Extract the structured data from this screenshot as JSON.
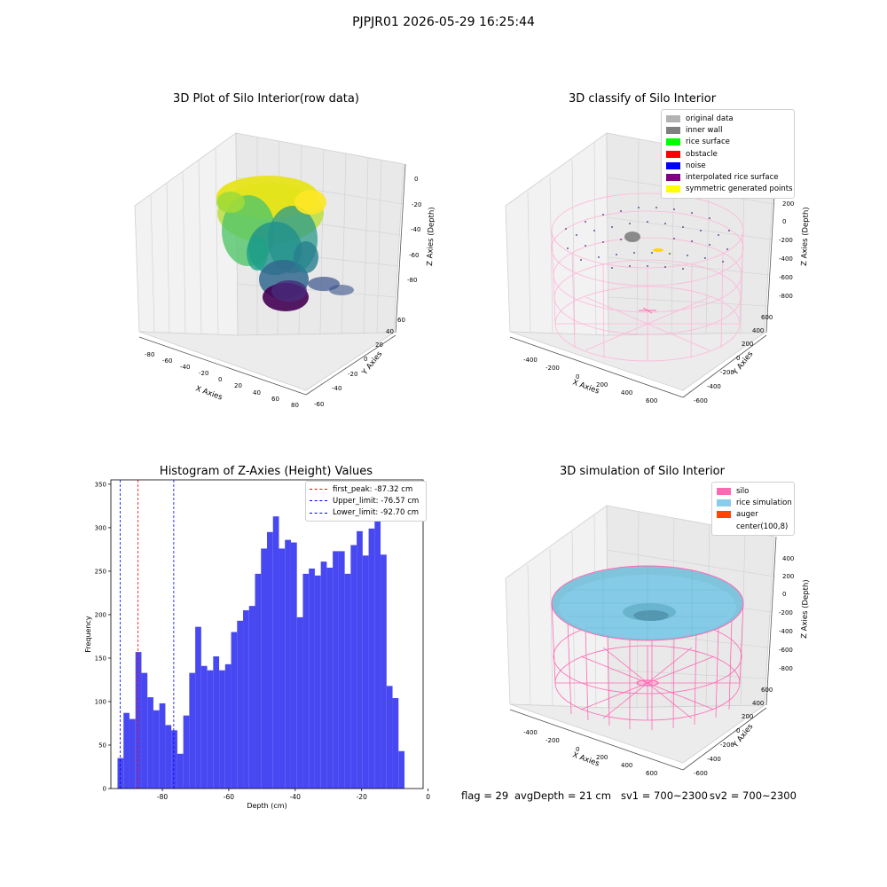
{
  "suptitle": "PJPJR01 2026-05-29 16:25:44",
  "panels": {
    "raw3d": {
      "title": "3D Plot of Silo Interior(row data)",
      "xlabel": "X Axies",
      "ylabel": "Y Axies",
      "zlabel": "Z Axies (Depth)",
      "xticks": [
        "-80",
        "-60",
        "-40",
        "-20",
        "0",
        "20",
        "40",
        "60",
        "80"
      ],
      "yticks": [
        "-60",
        "-40",
        "-20",
        "0",
        "20",
        "40",
        "60"
      ],
      "zticks": [
        "0",
        "-20",
        "-40",
        "-60",
        "-80"
      ]
    },
    "classify3d": {
      "title": "3D classify of Silo Interior",
      "xlabel": "X Axies",
      "ylabel": "Y Axies",
      "zlabel": "Z Axies (Depth)",
      "xticks": [
        "-400",
        "-200",
        "0",
        "200",
        "400",
        "600"
      ],
      "yticks": [
        "-600",
        "-400",
        "-200",
        "0",
        "200",
        "400",
        "600"
      ],
      "zticks": [
        "200",
        "0",
        "-200",
        "-400",
        "-600",
        "-800"
      ],
      "ztick_top": "00",
      "legend": [
        {
          "label": "original data",
          "color": "#b3b3b3"
        },
        {
          "label": "inner wall",
          "color": "#808080"
        },
        {
          "label": "rice surface",
          "color": "#00ff00"
        },
        {
          "label": "obstacle",
          "color": "#ff0000"
        },
        {
          "label": "noise",
          "color": "#0000ff"
        },
        {
          "label": "interpolated rice surface",
          "color": "#800080"
        },
        {
          "label": "symmetric generated points",
          "color": "#ffff00"
        }
      ]
    },
    "simulation3d": {
      "title": "3D simulation of Silo Interior",
      "xlabel": "X Axies",
      "ylabel": "Y Axies",
      "zlabel": "Z Axies (Depth)",
      "xticks": [
        "-400",
        "-200",
        "0",
        "200",
        "400",
        "600"
      ],
      "yticks": [
        "-600",
        "-400",
        "-200",
        "0",
        "200",
        "400",
        "600"
      ],
      "zticks": [
        "400",
        "200",
        "0",
        "-200",
        "-400",
        "-600",
        "-800"
      ],
      "legend": [
        {
          "label": "silo",
          "color": "#ff69b4"
        },
        {
          "label": "rice simulation",
          "color": "#87ceeb"
        },
        {
          "label": "auger",
          "color": "#ff4500"
        },
        {
          "label": "center(100,8)",
          "color": "#ffffff"
        }
      ]
    }
  },
  "footer": {
    "flag": "flag = 29",
    "avg": "avgDepth = 21 cm",
    "sv1": "sv1 = 700~2300",
    "sv2": "sv2 = 700~2300"
  },
  "colors": {
    "bar": "#4848f2",
    "first_peak": "#ff0000",
    "limits": "#0000ff"
  },
  "chart_data": {
    "type": "bar",
    "title": "Histogram of Z-Axies (Height) Values",
    "xlabel": "Depth (cm)",
    "ylabel": "Frequency",
    "xlim": [
      -95.5,
      -1.5
    ],
    "ylim": [
      0,
      355
    ],
    "xticks": [
      -80,
      -60,
      -40,
      -20,
      0
    ],
    "yticks": [
      0,
      50,
      100,
      150,
      200,
      250,
      300,
      350
    ],
    "bin_start": -93.5,
    "bin_width": 1.8,
    "values": [
      35,
      87,
      80,
      157,
      133,
      105,
      90,
      98,
      73,
      67,
      40,
      84,
      133,
      186,
      141,
      136,
      152,
      136,
      143,
      180,
      193,
      205,
      210,
      247,
      276,
      295,
      313,
      276,
      286,
      283,
      197,
      247,
      253,
      245,
      261,
      254,
      273,
      273,
      247,
      280,
      296,
      268,
      299,
      321,
      269,
      118,
      104,
      43
    ],
    "lines": [
      {
        "label": "first_peak: -87.32 cm",
        "x": -87.32,
        "color": "#ff0000"
      },
      {
        "label": "Upper_limit: -76.57 cm",
        "x": -76.57,
        "color": "#0000ff"
      },
      {
        "label": "Lower_limit: -92.70 cm",
        "x": -92.7,
        "color": "#0000ff"
      }
    ]
  }
}
